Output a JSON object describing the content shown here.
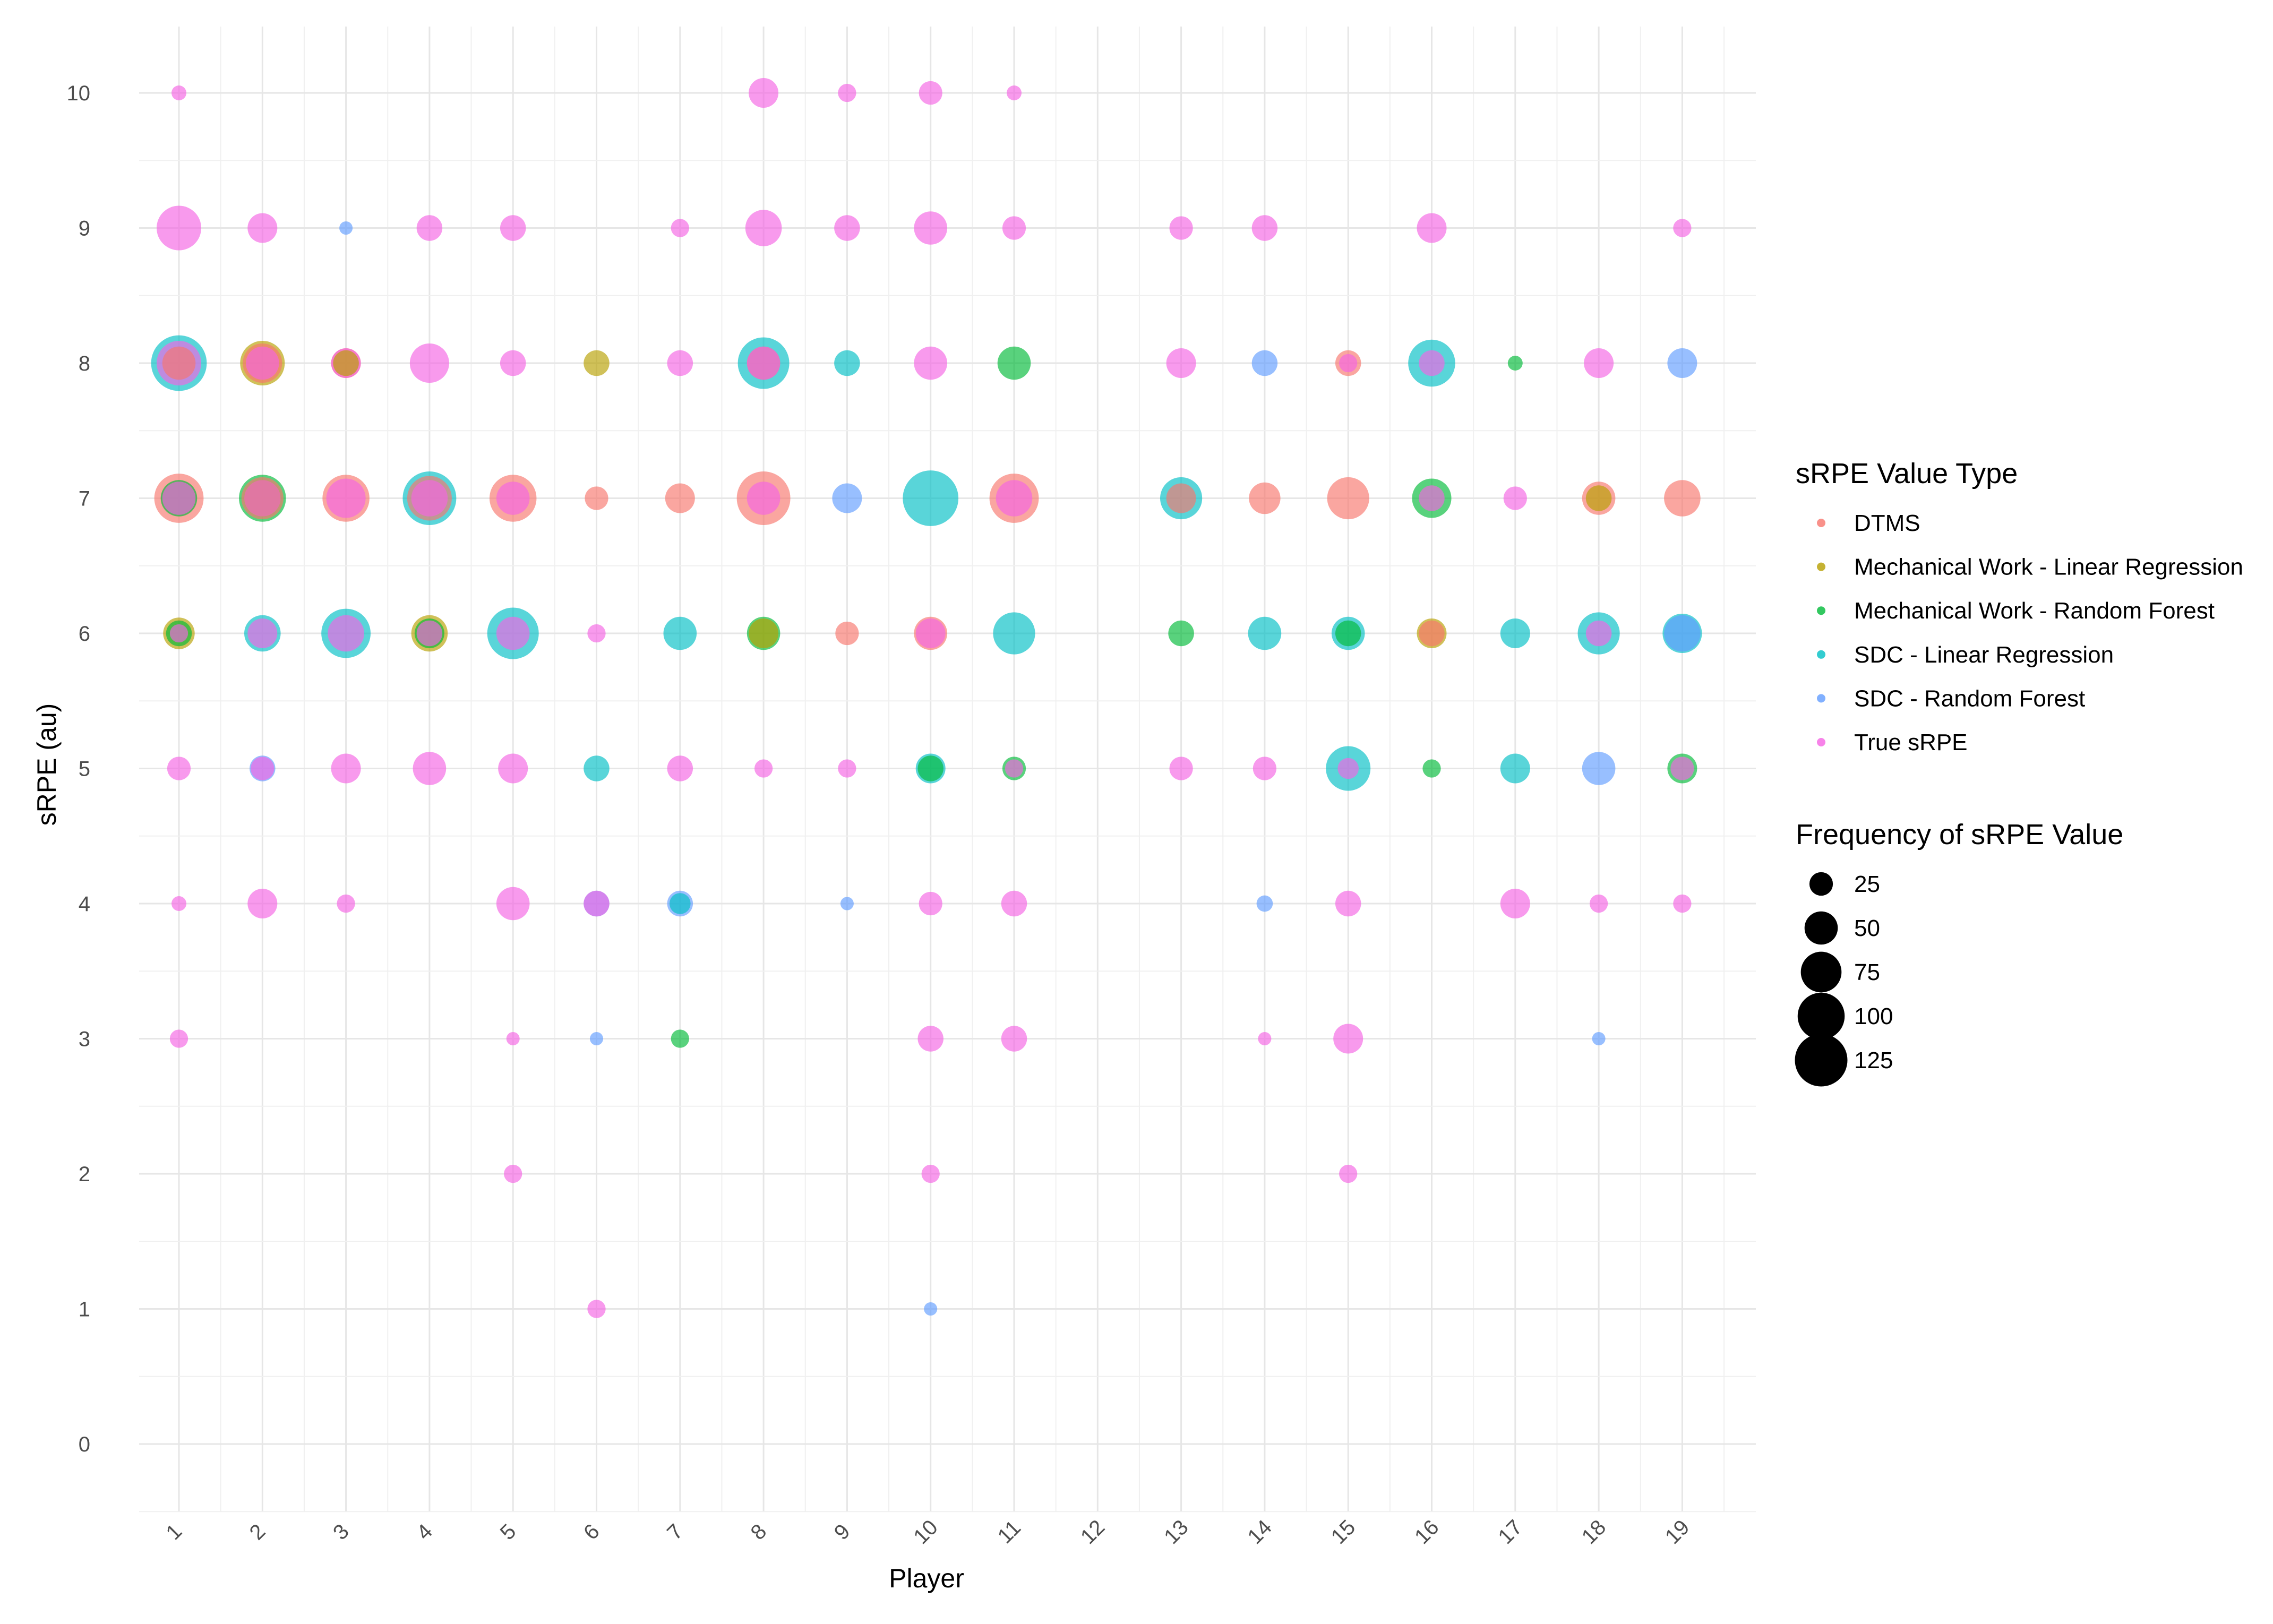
{
  "chart_data": {
    "type": "scatter",
    "xlabel": "Player",
    "ylabel": "sRPE (au)",
    "x_ticks": [
      "1",
      "2",
      "3",
      "4",
      "5",
      "6",
      "7",
      "8",
      "9",
      "10",
      "11",
      "12",
      "13",
      "14",
      "15",
      "16",
      "17",
      "18",
      "19"
    ],
    "y_ticks": [
      0,
      1,
      2,
      3,
      4,
      5,
      6,
      7,
      8,
      9,
      10
    ],
    "xlim": [
      0.5,
      19.9
    ],
    "ylim": [
      -0.5,
      10.5
    ],
    "grid": true,
    "legend_placement": "right",
    "color_legend": {
      "title": "sRPE Value Type",
      "entries": [
        {
          "name": "DTMS",
          "color": "#F8766D"
        },
        {
          "name": "Mechanical Work - Linear Regression",
          "color": "#B79F00"
        },
        {
          "name": "Mechanical Work - Random Forest",
          "color": "#00BA38"
        },
        {
          "name": "SDC - Linear Regression",
          "color": "#00BFC4"
        },
        {
          "name": "SDC - Random Forest",
          "color": "#619CFF"
        },
        {
          "name": "True sRPE",
          "color": "#F564E3"
        }
      ]
    },
    "size_legend": {
      "title": "Frequency of sRPE Value",
      "entries": [
        25,
        50,
        75,
        100,
        125
      ]
    },
    "series": [
      {
        "name": "DTMS",
        "points": [
          {
            "x": 1,
            "y": 7,
            "freq": 110
          },
          {
            "x": 1,
            "y": 8,
            "freq": 50
          },
          {
            "x": 2,
            "y": 8,
            "freq": 70
          },
          {
            "x": 2,
            "y": 7,
            "freq": 80
          },
          {
            "x": 3,
            "y": 7,
            "freq": 100
          },
          {
            "x": 3,
            "y": 8,
            "freq": 40
          },
          {
            "x": 4,
            "y": 7,
            "freq": 90
          },
          {
            "x": 5,
            "y": 7,
            "freq": 100
          },
          {
            "x": 6,
            "y": 7,
            "freq": 25
          },
          {
            "x": 7,
            "y": 7,
            "freq": 40
          },
          {
            "x": 8,
            "y": 7,
            "freq": 130
          },
          {
            "x": 8,
            "y": 8,
            "freq": 50
          },
          {
            "x": 10,
            "y": 6,
            "freq": 50
          },
          {
            "x": 11,
            "y": 7,
            "freq": 110
          },
          {
            "x": 13,
            "y": 7,
            "freq": 40
          },
          {
            "x": 14,
            "y": 7,
            "freq": 45
          },
          {
            "x": 15,
            "y": 7,
            "freq": 80
          },
          {
            "x": 15,
            "y": 8,
            "freq": 30
          },
          {
            "x": 16,
            "y": 6,
            "freq": 30
          },
          {
            "x": 18,
            "y": 7,
            "freq": 50
          },
          {
            "x": 19,
            "y": 7,
            "freq": 60
          },
          {
            "x": 9,
            "y": 6,
            "freq": 25
          }
        ]
      },
      {
        "name": "Mechanical Work - Linear Regression",
        "points": [
          {
            "x": 1,
            "y": 6,
            "freq": 45
          },
          {
            "x": 2,
            "y": 8,
            "freq": 90
          },
          {
            "x": 2,
            "y": 7,
            "freq": 60
          },
          {
            "x": 4,
            "y": 6,
            "freq": 60
          },
          {
            "x": 6,
            "y": 8,
            "freq": 30
          },
          {
            "x": 8,
            "y": 6,
            "freq": 40
          },
          {
            "x": 16,
            "y": 6,
            "freq": 40
          },
          {
            "x": 18,
            "y": 7,
            "freq": 30
          },
          {
            "x": 3,
            "y": 8,
            "freq": 30
          }
        ]
      },
      {
        "name": "Mechanical Work - Random Forest",
        "points": [
          {
            "x": 1,
            "y": 6,
            "freq": 30
          },
          {
            "x": 1,
            "y": 7,
            "freq": 60
          },
          {
            "x": 2,
            "y": 7,
            "freq": 100
          },
          {
            "x": 4,
            "y": 6,
            "freq": 40
          },
          {
            "x": 7,
            "y": 3,
            "freq": 15
          },
          {
            "x": 8,
            "y": 6,
            "freq": 50
          },
          {
            "x": 10,
            "y": 5,
            "freq": 30
          },
          {
            "x": 11,
            "y": 8,
            "freq": 50
          },
          {
            "x": 11,
            "y": 5,
            "freq": 25
          },
          {
            "x": 13,
            "y": 6,
            "freq": 30
          },
          {
            "x": 15,
            "y": 6,
            "freq": 30
          },
          {
            "x": 16,
            "y": 7,
            "freq": 70
          },
          {
            "x": 16,
            "y": 5,
            "freq": 15
          },
          {
            "x": 17,
            "y": 8,
            "freq": 10
          },
          {
            "x": 19,
            "y": 5,
            "freq": 40
          }
        ]
      },
      {
        "name": "SDC - Linear Regression",
        "points": [
          {
            "x": 1,
            "y": 8,
            "freq": 140
          },
          {
            "x": 2,
            "y": 6,
            "freq": 60
          },
          {
            "x": 3,
            "y": 6,
            "freq": 110
          },
          {
            "x": 4,
            "y": 7,
            "freq": 130
          },
          {
            "x": 5,
            "y": 6,
            "freq": 120
          },
          {
            "x": 6,
            "y": 5,
            "freq": 30
          },
          {
            "x": 7,
            "y": 6,
            "freq": 50
          },
          {
            "x": 8,
            "y": 8,
            "freq": 120
          },
          {
            "x": 9,
            "y": 8,
            "freq": 30
          },
          {
            "x": 10,
            "y": 7,
            "freq": 140
          },
          {
            "x": 10,
            "y": 5,
            "freq": 40
          },
          {
            "x": 11,
            "y": 6,
            "freq": 80
          },
          {
            "x": 13,
            "y": 7,
            "freq": 80
          },
          {
            "x": 14,
            "y": 6,
            "freq": 50
          },
          {
            "x": 15,
            "y": 6,
            "freq": 50
          },
          {
            "x": 15,
            "y": 5,
            "freq": 90
          },
          {
            "x": 16,
            "y": 8,
            "freq": 100
          },
          {
            "x": 17,
            "y": 6,
            "freq": 40
          },
          {
            "x": 17,
            "y": 5,
            "freq": 40
          },
          {
            "x": 18,
            "y": 6,
            "freq": 80
          },
          {
            "x": 19,
            "y": 6,
            "freq": 70
          },
          {
            "x": 7,
            "y": 4,
            "freq": 20
          }
        ]
      },
      {
        "name": "SDC - Random Forest",
        "points": [
          {
            "x": 3,
            "y": 9,
            "freq": 8
          },
          {
            "x": 6,
            "y": 3,
            "freq": 8
          },
          {
            "x": 9,
            "y": 4,
            "freq": 8
          },
          {
            "x": 10,
            "y": 1,
            "freq": 8
          },
          {
            "x": 14,
            "y": 4,
            "freq": 12
          },
          {
            "x": 18,
            "y": 3,
            "freq": 8
          },
          {
            "x": 9,
            "y": 7,
            "freq": 40
          },
          {
            "x": 7,
            "y": 4,
            "freq": 30
          },
          {
            "x": 2,
            "y": 5,
            "freq": 30
          },
          {
            "x": 14,
            "y": 8,
            "freq": 30
          },
          {
            "x": 18,
            "y": 5,
            "freq": 50
          },
          {
            "x": 19,
            "y": 8,
            "freq": 40
          },
          {
            "x": 6,
            "y": 4,
            "freq": 30
          },
          {
            "x": 19,
            "y": 6,
            "freq": 60
          }
        ]
      },
      {
        "name": "True sRPE",
        "points": [
          {
            "x": 1,
            "y": 10,
            "freq": 10
          },
          {
            "x": 1,
            "y": 9,
            "freq": 90
          },
          {
            "x": 1,
            "y": 8,
            "freq": 90
          },
          {
            "x": 1,
            "y": 7,
            "freq": 50
          },
          {
            "x": 1,
            "y": 6,
            "freq": 15
          },
          {
            "x": 1,
            "y": 5,
            "freq": 25
          },
          {
            "x": 1,
            "y": 4,
            "freq": 10
          },
          {
            "x": 1,
            "y": 3,
            "freq": 15
          },
          {
            "x": 2,
            "y": 9,
            "freq": 40
          },
          {
            "x": 2,
            "y": 8,
            "freq": 50
          },
          {
            "x": 2,
            "y": 7,
            "freq": 60
          },
          {
            "x": 2,
            "y": 6,
            "freq": 40
          },
          {
            "x": 2,
            "y": 5,
            "freq": 25
          },
          {
            "x": 2,
            "y": 4,
            "freq": 40
          },
          {
            "x": 3,
            "y": 8,
            "freq": 40
          },
          {
            "x": 3,
            "y": 7,
            "freq": 70
          },
          {
            "x": 3,
            "y": 6,
            "freq": 60
          },
          {
            "x": 3,
            "y": 5,
            "freq": 40
          },
          {
            "x": 3,
            "y": 4,
            "freq": 15
          },
          {
            "x": 4,
            "y": 9,
            "freq": 30
          },
          {
            "x": 4,
            "y": 8,
            "freq": 70
          },
          {
            "x": 4,
            "y": 7,
            "freq": 60
          },
          {
            "x": 4,
            "y": 6,
            "freq": 30
          },
          {
            "x": 4,
            "y": 5,
            "freq": 50
          },
          {
            "x": 5,
            "y": 9,
            "freq": 30
          },
          {
            "x": 5,
            "y": 8,
            "freq": 30
          },
          {
            "x": 5,
            "y": 7,
            "freq": 50
          },
          {
            "x": 5,
            "y": 6,
            "freq": 50
          },
          {
            "x": 5,
            "y": 5,
            "freq": 40
          },
          {
            "x": 5,
            "y": 4,
            "freq": 50
          },
          {
            "x": 5,
            "y": 3,
            "freq": 8
          },
          {
            "x": 5,
            "y": 2,
            "freq": 15
          },
          {
            "x": 6,
            "y": 6,
            "freq": 15
          },
          {
            "x": 6,
            "y": 4,
            "freq": 30
          },
          {
            "x": 6,
            "y": 1,
            "freq": 15
          },
          {
            "x": 7,
            "y": 9,
            "freq": 15
          },
          {
            "x": 7,
            "y": 8,
            "freq": 30
          },
          {
            "x": 7,
            "y": 5,
            "freq": 30
          },
          {
            "x": 8,
            "y": 10,
            "freq": 40
          },
          {
            "x": 8,
            "y": 9,
            "freq": 60
          },
          {
            "x": 8,
            "y": 8,
            "freq": 50
          },
          {
            "x": 8,
            "y": 7,
            "freq": 50
          },
          {
            "x": 8,
            "y": 5,
            "freq": 15
          },
          {
            "x": 9,
            "y": 10,
            "freq": 15
          },
          {
            "x": 9,
            "y": 9,
            "freq": 30
          },
          {
            "x": 9,
            "y": 5,
            "freq": 15
          },
          {
            "x": 10,
            "y": 10,
            "freq": 25
          },
          {
            "x": 10,
            "y": 9,
            "freq": 50
          },
          {
            "x": 10,
            "y": 8,
            "freq": 50
          },
          {
            "x": 10,
            "y": 6,
            "freq": 40
          },
          {
            "x": 10,
            "y": 4,
            "freq": 25
          },
          {
            "x": 10,
            "y": 3,
            "freq": 30
          },
          {
            "x": 10,
            "y": 2,
            "freq": 15
          },
          {
            "x": 11,
            "y": 10,
            "freq": 10
          },
          {
            "x": 11,
            "y": 9,
            "freq": 25
          },
          {
            "x": 11,
            "y": 7,
            "freq": 60
          },
          {
            "x": 11,
            "y": 5,
            "freq": 15
          },
          {
            "x": 11,
            "y": 4,
            "freq": 30
          },
          {
            "x": 11,
            "y": 3,
            "freq": 30
          },
          {
            "x": 13,
            "y": 9,
            "freq": 25
          },
          {
            "x": 13,
            "y": 8,
            "freq": 40
          },
          {
            "x": 13,
            "y": 5,
            "freq": 25
          },
          {
            "x": 14,
            "y": 9,
            "freq": 30
          },
          {
            "x": 14,
            "y": 5,
            "freq": 25
          },
          {
            "x": 14,
            "y": 3,
            "freq": 8
          },
          {
            "x": 15,
            "y": 8,
            "freq": 15
          },
          {
            "x": 15,
            "y": 5,
            "freq": 20
          },
          {
            "x": 15,
            "y": 4,
            "freq": 30
          },
          {
            "x": 15,
            "y": 3,
            "freq": 40
          },
          {
            "x": 15,
            "y": 2,
            "freq": 15
          },
          {
            "x": 16,
            "y": 9,
            "freq": 40
          },
          {
            "x": 16,
            "y": 8,
            "freq": 30
          },
          {
            "x": 16,
            "y": 7,
            "freq": 30
          },
          {
            "x": 17,
            "y": 7,
            "freq": 25
          },
          {
            "x": 17,
            "y": 4,
            "freq": 40
          },
          {
            "x": 18,
            "y": 8,
            "freq": 40
          },
          {
            "x": 18,
            "y": 6,
            "freq": 30
          },
          {
            "x": 18,
            "y": 4,
            "freq": 15
          },
          {
            "x": 19,
            "y": 9,
            "freq": 15
          },
          {
            "x": 19,
            "y": 4,
            "freq": 15
          },
          {
            "x": 19,
            "y": 5,
            "freq": 25
          }
        ]
      }
    ]
  }
}
